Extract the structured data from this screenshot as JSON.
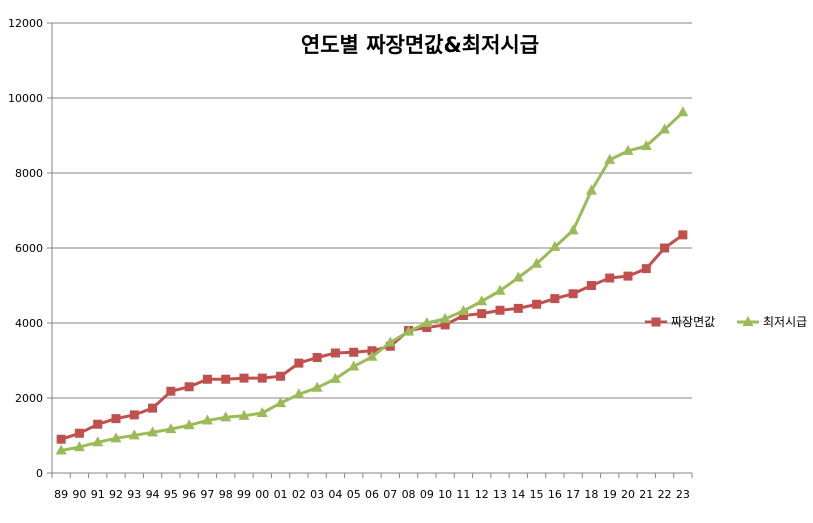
{
  "chart_data": {
    "type": "line",
    "title": "연도별 짜장면값&최저시급",
    "xlabel": "",
    "ylabel": "",
    "ylim": [
      0,
      12000
    ],
    "yticks": [
      0,
      2000,
      4000,
      6000,
      8000,
      10000,
      12000
    ],
    "grid": "horizontal",
    "legend_position": "right",
    "categories": [
      "89",
      "90",
      "91",
      "92",
      "93",
      "94",
      "95",
      "96",
      "97",
      "98",
      "99",
      "00",
      "01",
      "02",
      "03",
      "04",
      "05",
      "06",
      "07",
      "08",
      "09",
      "10",
      "11",
      "12",
      "13",
      "14",
      "15",
      "16",
      "17",
      "18",
      "19",
      "20",
      "21",
      "22",
      "23"
    ],
    "series": [
      {
        "name": "짜장면값",
        "color": "#C0504D",
        "marker": "square",
        "values": [
          900,
          1060,
          1300,
          1450,
          1550,
          1730,
          2180,
          2300,
          2500,
          2500,
          2530,
          2530,
          2580,
          2930,
          3080,
          3200,
          3220,
          3260,
          3380,
          3800,
          3880,
          3950,
          4200,
          4250,
          4340,
          4390,
          4500,
          4650,
          4780,
          5000,
          5200,
          5250,
          5450,
          6000,
          6350
        ]
      },
      {
        "name": "최저시급",
        "color": "#9BBB59",
        "marker": "triangle",
        "values": [
          600,
          690,
          820,
          925,
          1005,
          1085,
          1170,
          1275,
          1400,
          1485,
          1525,
          1600,
          1865,
          2100,
          2275,
          2510,
          2840,
          3100,
          3480,
          3770,
          4000,
          4110,
          4320,
          4580,
          4860,
          5210,
          5580,
          6030,
          6470,
          7530,
          8350,
          8590,
          8720,
          9160,
          9620
        ]
      }
    ]
  }
}
